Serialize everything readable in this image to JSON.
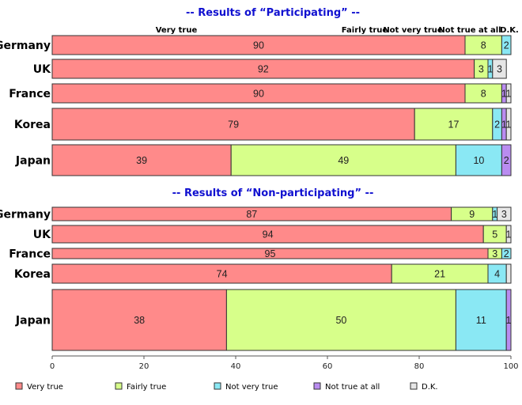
{
  "chart_data": {
    "type": "bar",
    "orientation": "horizontal",
    "stacked": true,
    "series_names": [
      "Very true",
      "Fairly true",
      "Not very true",
      "Not true at all",
      "D.K."
    ],
    "colors": {
      "Very true": "#ff8a8a",
      "Fairly true": "#d7ff8a",
      "Not very true": "#8ae8f4",
      "Not true at all": "#b98cf0",
      "D.K.": "#e6e6e6"
    },
    "panels": [
      {
        "title": "-- Results of “Participating” --",
        "column_headers": [
          "Very true",
          "Fairly true",
          "Not very true",
          "Not true at all",
          "D.K."
        ],
        "categories": [
          "Germany",
          "UK",
          "France",
          "Korea",
          "Japan"
        ],
        "values": [
          [
            90,
            8,
            2,
            0,
            0
          ],
          [
            92,
            3,
            1,
            0,
            3
          ],
          [
            90,
            8,
            0,
            1,
            1
          ],
          [
            79,
            17,
            2,
            1,
            1
          ],
          [
            39,
            49,
            10,
            2,
            0
          ]
        ],
        "labels": [
          [
            "90",
            "8",
            "2",
            "",
            ""
          ],
          [
            "92",
            "3",
            "1",
            "",
            "3"
          ],
          [
            "90",
            "8",
            "",
            "1",
            "1"
          ],
          [
            "79",
            "17",
            "2",
            "1",
            "1"
          ],
          [
            "39",
            "49",
            "10",
            "2",
            ""
          ]
        ]
      },
      {
        "title": "-- Results of “Non-participating” --",
        "categories": [
          "Germany",
          "UK",
          "France",
          "Korea",
          "Japan"
        ],
        "values": [
          [
            87,
            9,
            1,
            0,
            3
          ],
          [
            94,
            5,
            0,
            0,
            1
          ],
          [
            95,
            3,
            2,
            0,
            0
          ],
          [
            74,
            21,
            4,
            0,
            1
          ],
          [
            38,
            50,
            11,
            1,
            0
          ]
        ],
        "labels": [
          [
            "87",
            "9",
            "1",
            "",
            "3"
          ],
          [
            "94",
            "5",
            "",
            "",
            "1"
          ],
          [
            "95",
            "3",
            "2",
            "",
            ""
          ],
          [
            "74",
            "21",
            "4",
            "",
            ""
          ],
          [
            "38",
            "50",
            "11",
            "1",
            ""
          ]
        ]
      }
    ],
    "xaxis": {
      "ticks": [
        "0",
        "20",
        "40",
        "60",
        "80",
        "100"
      ],
      "xlim": [
        0,
        100
      ]
    },
    "legend": {
      "placement": "bottom",
      "items": [
        "Very true",
        "Fairly true",
        "Not very true",
        "Not true at all",
        "D.K."
      ]
    }
  }
}
